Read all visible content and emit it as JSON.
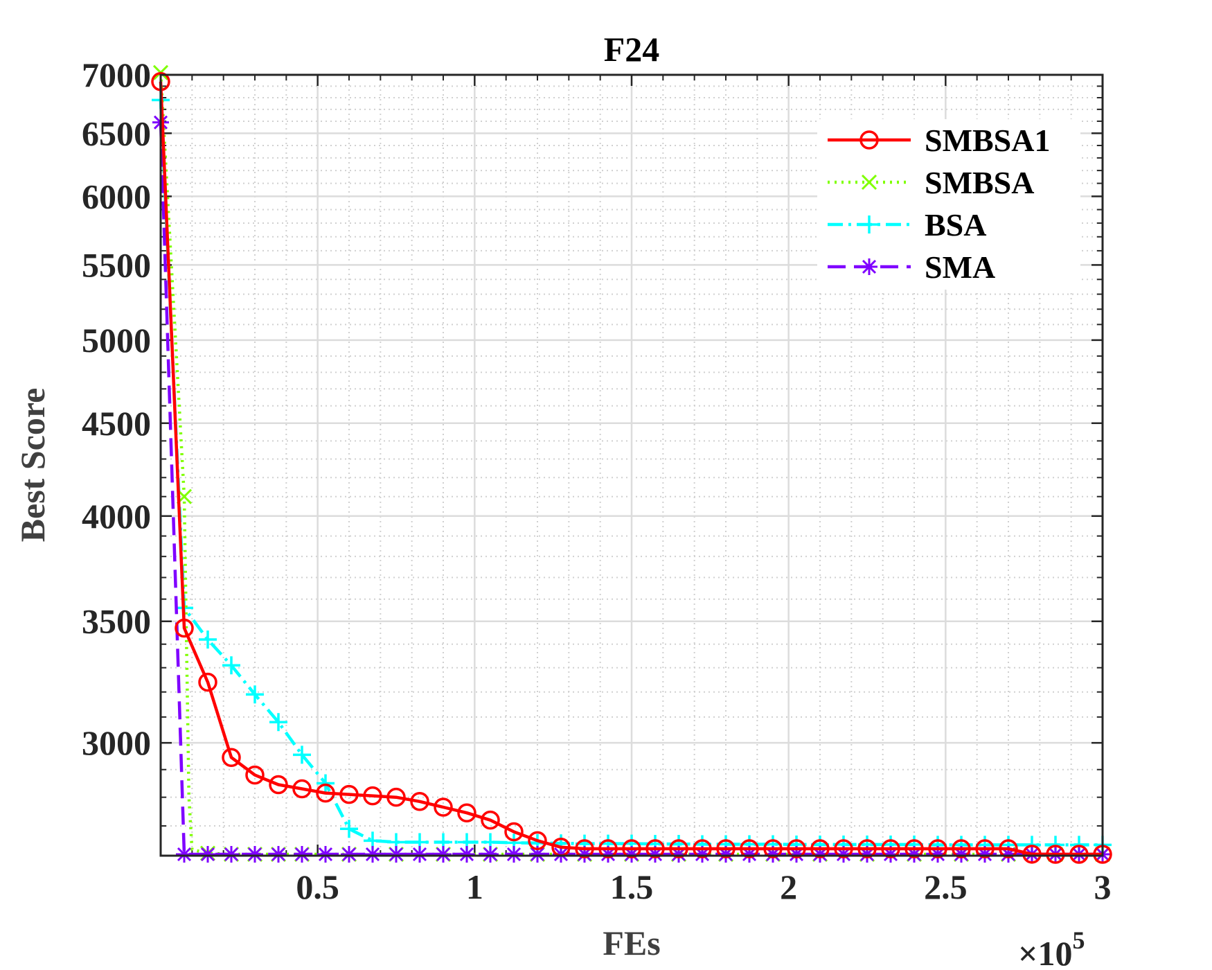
{
  "chart_data": {
    "type": "line",
    "title": "F24",
    "xlabel": "FEs",
    "ylabel": "Best Score",
    "x_exponent_label": "×10",
    "x_exponent_power": "5",
    "x_scale": 100000,
    "xlim": [
      0,
      3
    ],
    "ylim": [
      2600,
      7000
    ],
    "y_scale": "log",
    "x_ticks": [
      0.5,
      1,
      1.5,
      2,
      2.5,
      3
    ],
    "x_tick_labels": [
      "0.5",
      "1",
      "1.5",
      "2",
      "2.5",
      "3"
    ],
    "y_ticks": [
      3000,
      3500,
      4000,
      4500,
      5000,
      5500,
      6000,
      6500,
      7000
    ],
    "y_tick_labels": [
      "3000",
      "3500",
      "4000",
      "4500",
      "5000",
      "5500",
      "6000",
      "6500",
      "7000"
    ],
    "grid": true,
    "legend_position": "top-right",
    "series": [
      {
        "name": "SMBSA1",
        "color": "#ff0000",
        "line_style": "solid",
        "marker": "circle",
        "x": [
          0,
          0.075,
          0.15,
          0.225,
          0.3,
          0.375,
          0.45,
          0.525,
          0.6,
          0.675,
          0.75,
          0.825,
          0.9,
          0.975,
          1.05,
          1.125,
          1.2,
          1.275,
          1.35,
          1.425,
          1.5,
          1.575,
          1.65,
          1.725,
          1.8,
          1.875,
          1.95,
          2.025,
          2.1,
          2.175,
          2.25,
          2.325,
          2.4,
          2.475,
          2.55,
          2.625,
          2.7,
          2.775,
          2.85,
          2.925,
          3.0
        ],
        "y": [
          6940,
          3470,
          3240,
          2945,
          2880,
          2845,
          2830,
          2815,
          2810,
          2805,
          2800,
          2785,
          2765,
          2745,
          2720,
          2680,
          2650,
          2628,
          2623,
          2623,
          2623,
          2623,
          2623,
          2623,
          2623,
          2623,
          2623,
          2623,
          2623,
          2623,
          2623,
          2623,
          2623,
          2623,
          2623,
          2623,
          2623,
          2605,
          2603,
          2600,
          2600
        ]
      },
      {
        "name": "SMBSA",
        "color": "#7fff00",
        "line_style": "dotted",
        "marker": "x",
        "x": [
          0,
          0.075,
          0.09,
          0.1,
          0.15,
          0.225,
          0.3,
          0.375,
          0.45,
          0.6,
          0.75,
          0.9,
          1.05,
          1.2,
          1.35,
          1.5,
          1.65,
          1.8,
          1.95,
          2.1,
          2.25,
          2.4,
          2.55,
          2.7,
          2.85,
          3.0
        ],
        "y": [
          7020,
          4100,
          2800,
          2620,
          2608,
          2603,
          2601,
          2600,
          2600,
          2600,
          2600,
          2600,
          2600,
          2600,
          2600,
          2600,
          2600,
          2600,
          2600,
          2600,
          2600,
          2600,
          2600,
          2600,
          2600,
          2600
        ]
      },
      {
        "name": "BSA",
        "color": "#00ffff",
        "line_style": "dash-dot",
        "marker": "plus",
        "x": [
          0,
          0.075,
          0.15,
          0.225,
          0.3,
          0.375,
          0.45,
          0.525,
          0.6,
          0.675,
          0.75,
          0.825,
          0.9,
          0.975,
          1.05,
          1.125,
          1.2,
          1.275,
          1.35,
          1.425,
          1.5,
          1.575,
          1.65,
          1.725,
          1.8,
          1.875,
          1.95,
          2.025,
          2.1,
          2.175,
          2.25,
          2.325,
          2.4,
          2.475,
          2.55,
          2.625,
          2.7,
          2.775,
          2.85,
          2.925,
          3.0
        ],
        "y": [
          6780,
          3560,
          3420,
          3310,
          3190,
          3080,
          2955,
          2850,
          2690,
          2650,
          2645,
          2645,
          2645,
          2645,
          2645,
          2643,
          2642,
          2641,
          2640,
          2640,
          2640,
          2639,
          2639,
          2638,
          2638,
          2638,
          2638,
          2637,
          2637,
          2637,
          2637,
          2637,
          2637,
          2636,
          2636,
          2636,
          2636,
          2636,
          2636,
          2636,
          2636
        ]
      },
      {
        "name": "SMA",
        "color": "#7f00ff",
        "line_style": "dashed",
        "marker": "asterisk",
        "x": [
          0,
          0.075,
          0.15,
          0.225,
          0.3,
          0.375,
          0.45,
          0.525,
          0.6,
          0.675,
          0.75,
          0.825,
          0.9,
          0.975,
          1.05,
          1.125,
          1.2,
          1.275,
          1.35,
          1.425,
          1.5,
          1.575,
          1.65,
          1.725,
          1.8,
          1.875,
          1.95,
          2.025,
          2.1,
          2.175,
          2.25,
          2.325,
          2.4,
          2.475,
          2.55,
          2.625,
          2.7,
          2.775,
          2.85,
          2.925,
          3.0
        ],
        "y": [
          6590,
          2600,
          2600,
          2600,
          2600,
          2600,
          2600,
          2600,
          2600,
          2600,
          2600,
          2600,
          2600,
          2600,
          2600,
          2600,
          2600,
          2600,
          2600,
          2600,
          2600,
          2600,
          2600,
          2600,
          2600,
          2600,
          2600,
          2600,
          2600,
          2600,
          2600,
          2600,
          2600,
          2600,
          2600,
          2600,
          2600,
          2600,
          2600,
          2600,
          2600
        ]
      }
    ]
  }
}
